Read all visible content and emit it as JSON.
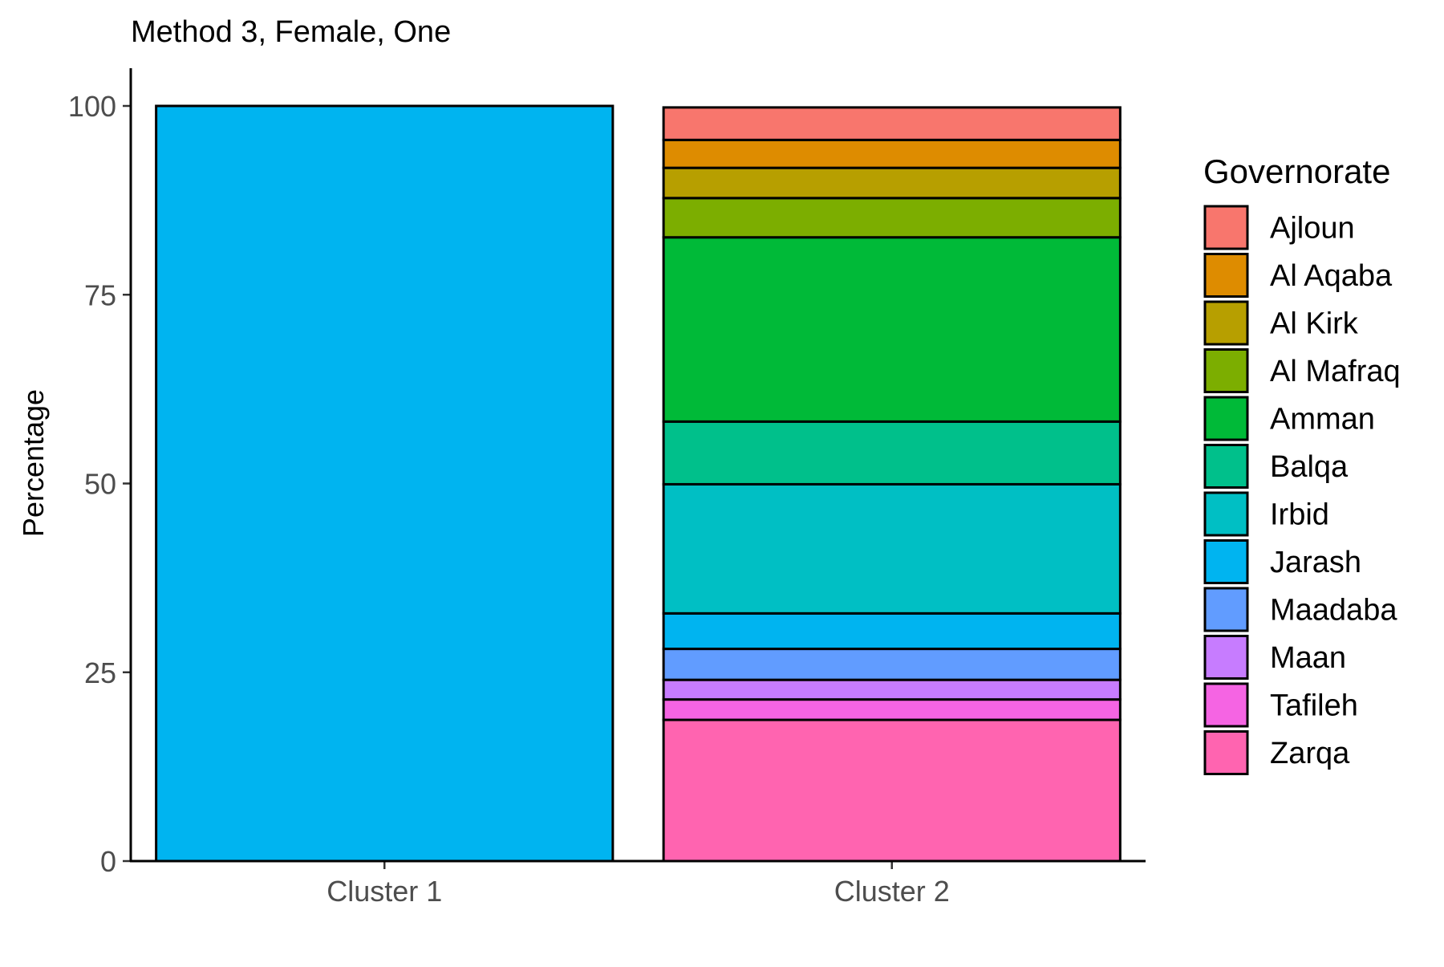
{
  "chart_data": {
    "type": "bar",
    "stacked": true,
    "title": "Method 3, Female, One",
    "xlabel": "",
    "ylabel": "Percentage",
    "ylim": [
      0,
      105
    ],
    "yticks": [
      0,
      25,
      50,
      75,
      100
    ],
    "grid": false,
    "legend_position": "right",
    "legend_title": "Governorate",
    "categories": [
      "Cluster 1",
      "Cluster 2"
    ],
    "series": [
      {
        "name": "Ajloun",
        "color": "#F8766D",
        "values": [
          0,
          4.3
        ]
      },
      {
        "name": "Al Aqaba",
        "color": "#DE8C00",
        "values": [
          0,
          3.7
        ]
      },
      {
        "name": "Al Kirk",
        "color": "#B79F00",
        "values": [
          0,
          4.0
        ]
      },
      {
        "name": "Al Mafraq",
        "color": "#7CAE00",
        "values": [
          0,
          5.2
        ]
      },
      {
        "name": "Amman",
        "color": "#00BA38",
        "values": [
          0,
          24.4
        ]
      },
      {
        "name": "Balqa",
        "color": "#00C08B",
        "values": [
          0,
          8.3
        ]
      },
      {
        "name": "Irbid",
        "color": "#00BFC4",
        "values": [
          0,
          17.1
        ]
      },
      {
        "name": "Jarash",
        "color": "#00B4F0",
        "values": [
          100,
          4.7
        ]
      },
      {
        "name": "Maadaba",
        "color": "#619CFF",
        "values": [
          0,
          4.1
        ]
      },
      {
        "name": "Maan",
        "color": "#C77CFF",
        "values": [
          0,
          2.6
        ]
      },
      {
        "name": "Tafileh",
        "color": "#F564E3",
        "values": [
          0,
          2.7
        ]
      },
      {
        "name": "Zarqa",
        "color": "#FF64B0",
        "values": [
          0,
          18.7
        ]
      }
    ]
  }
}
